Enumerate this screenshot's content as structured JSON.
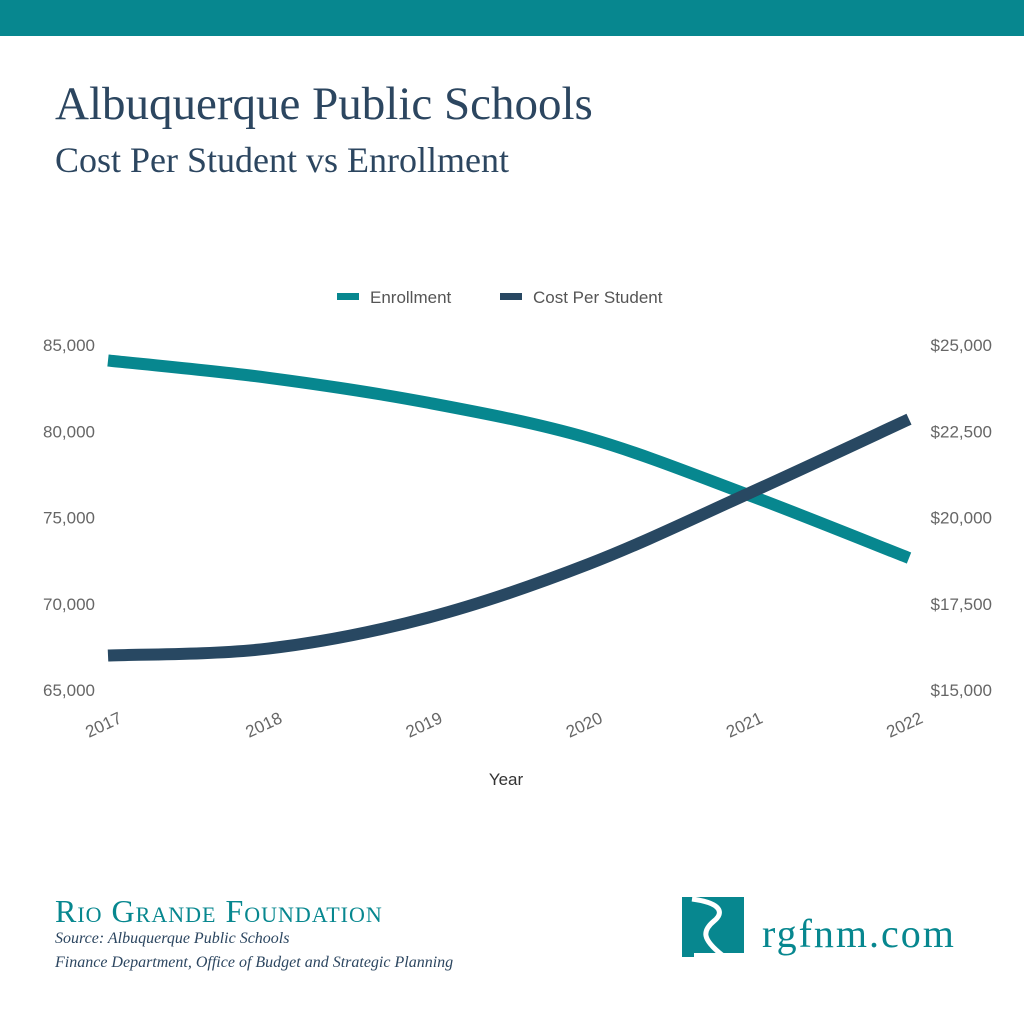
{
  "header": {
    "title": "Albuquerque Public Schools",
    "subtitle": "Cost Per Student vs Enrollment"
  },
  "chart_data": {
    "type": "line",
    "title": "Albuquerque Public Schools",
    "subtitle": "Cost Per Student vs Enrollment",
    "xlabel": "Year",
    "x": [
      "2017",
      "2018",
      "2019",
      "2020",
      "2021",
      "2022"
    ],
    "series": [
      {
        "name": "Enrollment",
        "axis": "left",
        "color": "#07878f",
        "values": [
          84100,
          83100,
          81650,
          79600,
          76300,
          72650
        ]
      },
      {
        "name": "Cost Per Student",
        "axis": "right",
        "color": "#284862",
        "values": [
          16000,
          16200,
          17100,
          18650,
          20700,
          22850
        ]
      }
    ],
    "y_left": {
      "range": [
        65000,
        85000
      ],
      "ticks": [
        "85,000",
        "80,000",
        "75,000",
        "70,000",
        "65,000"
      ]
    },
    "y_right": {
      "range": [
        15000,
        25000
      ],
      "ticks": [
        "$25,000",
        "$22,500",
        "$20,000",
        "$17,500",
        "$15,000"
      ]
    },
    "grid": false,
    "legend": "top-center",
    "smooth": true
  },
  "footer": {
    "org": "Rio Grande Foundation",
    "source_line1": "Source: Albuquerque Public Schools",
    "source_line2": "Finance Department, Office of Budget and Strategic Planning",
    "url": "rgfnm.com"
  },
  "colors": {
    "accent": "#07878f",
    "navy": "#284862",
    "title": "#2c4660"
  }
}
